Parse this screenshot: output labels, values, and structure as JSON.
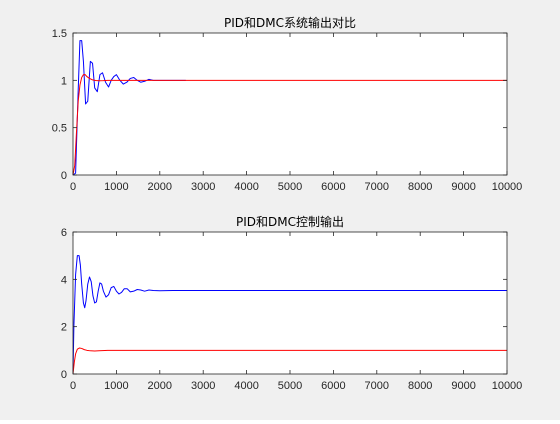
{
  "chart_data": [
    {
      "type": "line",
      "title": "PID和DMC系统输出对比",
      "xlabel": "",
      "ylabel": "",
      "xlim": [
        0,
        10000
      ],
      "ylim": [
        0,
        1.5
      ],
      "xticks": [
        0,
        1000,
        2000,
        3000,
        4000,
        5000,
        6000,
        7000,
        8000,
        9000,
        10000
      ],
      "xtick_labels": [
        "0",
        "1000",
        "2000",
        "3000",
        "4000",
        "5000",
        "6000",
        "7000",
        "8000",
        "9000",
        "10000"
      ],
      "yticks": [
        0,
        0.5,
        1,
        1.5
      ],
      "ytick_labels": [
        "0",
        "0.5",
        "1",
        "1.5"
      ],
      "grid": false,
      "series": [
        {
          "color": "#0000ff",
          "x": [
            0,
            60,
            120,
            160,
            200,
            240,
            290,
            340,
            400,
            450,
            500,
            560,
            620,
            680,
            750,
            820,
            880,
            940,
            1000,
            1080,
            1160,
            1240,
            1320,
            1400,
            1480,
            1560,
            1650,
            1750,
            1850,
            2000,
            2200,
            2600
          ],
          "y": [
            0,
            0.02,
            0.9,
            1.42,
            1.42,
            1.2,
            0.75,
            0.78,
            1.2,
            1.18,
            0.92,
            0.88,
            1.06,
            1.08,
            0.98,
            0.93,
            1.0,
            1.04,
            1.06,
            1.0,
            0.96,
            0.98,
            1.02,
            1.03,
            1.0,
            0.98,
            0.99,
            1.01,
            1.0,
            1.0,
            1.0,
            1.0
          ]
        },
        {
          "color": "#ff0000",
          "x": [
            0,
            40,
            80,
            120,
            160,
            200,
            240,
            280,
            320,
            380,
            450,
            520,
            600,
            700,
            800,
            900,
            1000,
            1200,
            1500,
            2000,
            3000,
            5000,
            7500,
            10000
          ],
          "y": [
            0,
            0.1,
            0.45,
            0.78,
            0.95,
            1.03,
            1.06,
            1.06,
            1.04,
            1.02,
            1.005,
            0.998,
            0.995,
            0.997,
            1.0,
            1.0,
            1.0,
            1.0,
            1.0,
            1.0,
            1.0,
            1.0,
            1.0,
            1.0
          ]
        }
      ]
    },
    {
      "type": "line",
      "title": "PID和DMC控制输出",
      "xlabel": "",
      "ylabel": "",
      "xlim": [
        0,
        10000
      ],
      "ylim": [
        0,
        6
      ],
      "xticks": [
        0,
        1000,
        2000,
        3000,
        4000,
        5000,
        6000,
        7000,
        8000,
        9000,
        10000
      ],
      "xtick_labels": [
        "0",
        "1000",
        "2000",
        "3000",
        "4000",
        "5000",
        "6000",
        "7000",
        "8000",
        "9000",
        "10000"
      ],
      "yticks": [
        0,
        2,
        4,
        6
      ],
      "ytick_labels": [
        "0",
        "2",
        "4",
        "6"
      ],
      "grid": false,
      "series": [
        {
          "color": "#0000ff",
          "x": [
            0,
            20,
            60,
            100,
            140,
            170,
            200,
            240,
            270,
            300,
            340,
            380,
            420,
            460,
            500,
            540,
            580,
            620,
            660,
            700,
            760,
            820,
            880,
            940,
            1000,
            1060,
            1120,
            1180,
            1250,
            1320,
            1400,
            1480,
            1560,
            1650,
            1750,
            1850,
            2000,
            2300,
            2600,
            3000,
            5000,
            7500,
            10000
          ],
          "y": [
            0,
            2.0,
            4.2,
            5.0,
            5.0,
            4.6,
            3.8,
            3.0,
            2.8,
            3.1,
            3.8,
            4.1,
            3.9,
            3.3,
            3.0,
            3.05,
            3.5,
            3.85,
            3.8,
            3.5,
            3.25,
            3.35,
            3.65,
            3.7,
            3.5,
            3.38,
            3.45,
            3.6,
            3.6,
            3.47,
            3.5,
            3.57,
            3.55,
            3.5,
            3.55,
            3.53,
            3.52,
            3.53,
            3.53,
            3.53,
            3.53,
            3.53,
            3.53
          ]
        },
        {
          "color": "#ff0000",
          "x": [
            0,
            30,
            60,
            100,
            150,
            200,
            260,
            320,
            400,
            500,
            600,
            800,
            1000,
            1500,
            2000,
            5000,
            7500,
            10000
          ],
          "y": [
            0,
            0.5,
            0.85,
            1.05,
            1.1,
            1.08,
            1.03,
            1.0,
            0.98,
            0.97,
            0.98,
            1.0,
            1.0,
            1.0,
            1.0,
            1.0,
            1.0,
            1.0
          ]
        }
      ]
    }
  ]
}
